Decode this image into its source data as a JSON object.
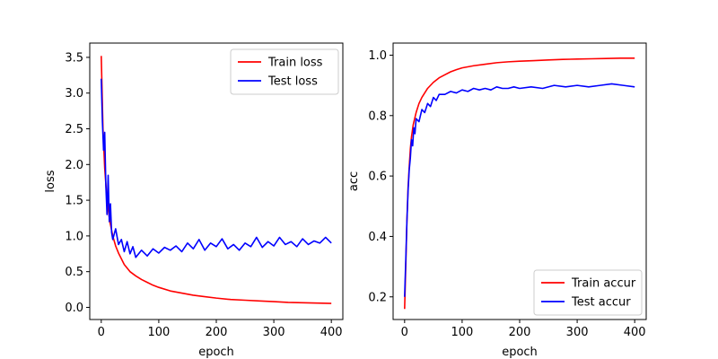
{
  "chart_data": [
    {
      "type": "line",
      "xlabel": "epoch",
      "ylabel": "loss",
      "xlim": [
        -20,
        420
      ],
      "ylim": [
        -0.17,
        3.7
      ],
      "xticks": [
        0,
        100,
        200,
        300,
        400
      ],
      "yticks": [
        0.0,
        0.5,
        1.0,
        1.5,
        2.0,
        2.5,
        3.0,
        3.5
      ],
      "ytick_labels": [
        "0.0",
        "0.5",
        "1.0",
        "1.5",
        "2.0",
        "2.5",
        "3.0",
        "3.5"
      ],
      "xtick_labels": [
        "0",
        "100",
        "200",
        "300",
        "400"
      ],
      "legend_position": "top-right",
      "series": [
        {
          "name": "Train loss",
          "color": "#ff0000",
          "x": [
            0,
            3,
            6,
            10,
            15,
            20,
            25,
            30,
            40,
            50,
            60,
            70,
            80,
            90,
            100,
            120,
            140,
            160,
            180,
            200,
            225,
            250,
            275,
            300,
            325,
            350,
            375,
            400
          ],
          "y": [
            3.52,
            2.5,
            1.95,
            1.5,
            1.2,
            1.0,
            0.86,
            0.76,
            0.6,
            0.5,
            0.44,
            0.39,
            0.35,
            0.31,
            0.28,
            0.23,
            0.2,
            0.17,
            0.15,
            0.13,
            0.11,
            0.1,
            0.09,
            0.08,
            0.07,
            0.065,
            0.06,
            0.055
          ]
        },
        {
          "name": "Test loss",
          "color": "#0000ff",
          "x": [
            0,
            2,
            4,
            6,
            8,
            10,
            12,
            14,
            16,
            18,
            20,
            25,
            30,
            35,
            40,
            45,
            50,
            55,
            60,
            70,
            80,
            90,
            100,
            110,
            120,
            130,
            140,
            150,
            160,
            170,
            180,
            190,
            200,
            210,
            220,
            230,
            240,
            250,
            260,
            270,
            280,
            290,
            300,
            310,
            320,
            330,
            340,
            350,
            360,
            370,
            380,
            390,
            400
          ],
          "y": [
            3.2,
            2.6,
            2.2,
            2.45,
            1.7,
            1.3,
            1.85,
            1.2,
            1.45,
            1.05,
            0.95,
            1.1,
            0.88,
            0.95,
            0.78,
            0.92,
            0.75,
            0.85,
            0.7,
            0.8,
            0.72,
            0.82,
            0.76,
            0.84,
            0.8,
            0.86,
            0.78,
            0.9,
            0.82,
            0.95,
            0.8,
            0.9,
            0.85,
            0.96,
            0.82,
            0.88,
            0.8,
            0.9,
            0.85,
            0.98,
            0.84,
            0.92,
            0.86,
            0.98,
            0.88,
            0.92,
            0.85,
            0.96,
            0.88,
            0.93,
            0.9,
            0.98,
            0.9
          ]
        }
      ]
    },
    {
      "type": "line",
      "xlabel": "epoch",
      "ylabel": "acc",
      "xlim": [
        -20,
        420
      ],
      "ylim": [
        0.125,
        1.04
      ],
      "xticks": [
        0,
        100,
        200,
        300,
        400
      ],
      "yticks": [
        0.2,
        0.4,
        0.6,
        0.8,
        1.0
      ],
      "ytick_labels": [
        "0.2",
        "0.4",
        "0.6",
        "0.8",
        "1.0"
      ],
      "xtick_labels": [
        "0",
        "100",
        "200",
        "300",
        "400"
      ],
      "legend_position": "bottom-right",
      "series": [
        {
          "name": "Train accur",
          "color": "#ff0000",
          "x": [
            0,
            2,
            4,
            6,
            8,
            10,
            12,
            15,
            20,
            25,
            30,
            40,
            50,
            60,
            70,
            80,
            90,
            100,
            120,
            140,
            160,
            180,
            200,
            225,
            250,
            275,
            300,
            325,
            350,
            375,
            400
          ],
          "y": [
            0.16,
            0.3,
            0.45,
            0.56,
            0.63,
            0.69,
            0.73,
            0.77,
            0.81,
            0.84,
            0.86,
            0.89,
            0.91,
            0.925,
            0.935,
            0.945,
            0.952,
            0.958,
            0.965,
            0.97,
            0.975,
            0.978,
            0.98,
            0.982,
            0.984,
            0.986,
            0.987,
            0.988,
            0.989,
            0.99,
            0.99
          ]
        },
        {
          "name": "Test accur",
          "color": "#0000ff",
          "x": [
            0,
            2,
            4,
            6,
            8,
            10,
            12,
            14,
            16,
            18,
            20,
            25,
            30,
            35,
            40,
            45,
            50,
            55,
            60,
            70,
            80,
            90,
            100,
            110,
            120,
            130,
            140,
            150,
            160,
            170,
            180,
            190,
            200,
            220,
            240,
            260,
            280,
            300,
            320,
            340,
            360,
            380,
            400
          ],
          "y": [
            0.2,
            0.32,
            0.45,
            0.55,
            0.62,
            0.66,
            0.72,
            0.7,
            0.76,
            0.74,
            0.79,
            0.78,
            0.82,
            0.81,
            0.84,
            0.83,
            0.86,
            0.85,
            0.87,
            0.87,
            0.88,
            0.875,
            0.885,
            0.88,
            0.89,
            0.885,
            0.89,
            0.885,
            0.895,
            0.89,
            0.89,
            0.895,
            0.89,
            0.895,
            0.89,
            0.9,
            0.895,
            0.9,
            0.895,
            0.9,
            0.905,
            0.9,
            0.895
          ]
        }
      ]
    }
  ]
}
